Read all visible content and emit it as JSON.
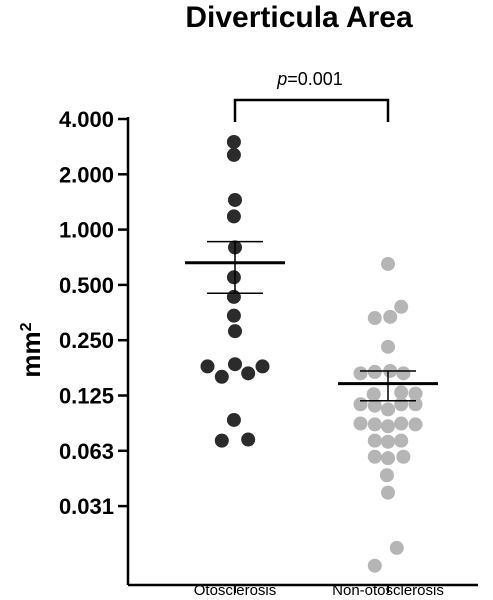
{
  "chart_data": {
    "type": "scatter",
    "title": "Diverticula Area",
    "ylabel_base": "mm",
    "ylabel_sup": "2",
    "yscale": "log2",
    "ylim": [
      0.0156,
      4.0
    ],
    "yticks": [
      {
        "value": 4.0,
        "label": "4.000"
      },
      {
        "value": 2.0,
        "label": "2.000"
      },
      {
        "value": 1.0,
        "label": "1.000"
      },
      {
        "value": 0.5,
        "label": "0.500"
      },
      {
        "value": 0.25,
        "label": "0.250"
      },
      {
        "value": 0.125,
        "label": "0.125"
      },
      {
        "value": 0.0625,
        "label": "0.063"
      },
      {
        "value": 0.03125,
        "label": "0.031"
      }
    ],
    "categories": [
      "Otosclerosis",
      "Non-otosclerosis"
    ],
    "annotation": {
      "p_label": "p",
      "p_value": "=0.001",
      "between": [
        0,
        1
      ]
    },
    "series": [
      {
        "category": "Otosclerosis",
        "color": "#2b2b2b",
        "mean": 0.66,
        "sem_low": 0.45,
        "sem_high": 0.86,
        "points": [
          {
            "y": 3.0,
            "dx": -0.01
          },
          {
            "y": 2.55,
            "dx": -0.01
          },
          {
            "y": 1.45,
            "dx": 0.0
          },
          {
            "y": 1.18,
            "dx": -0.01
          },
          {
            "y": 0.8,
            "dx": 0.0
          },
          {
            "y": 0.55,
            "dx": -0.01
          },
          {
            "y": 0.43,
            "dx": -0.01
          },
          {
            "y": 0.34,
            "dx": -0.01
          },
          {
            "y": 0.28,
            "dx": 0.0
          },
          {
            "y": 0.18,
            "dx": -0.25
          },
          {
            "y": 0.18,
            "dx": 0.25
          },
          {
            "y": 0.185,
            "dx": 0.0
          },
          {
            "y": 0.158,
            "dx": -0.12
          },
          {
            "y": 0.165,
            "dx": 0.12
          },
          {
            "y": 0.092,
            "dx": -0.01
          },
          {
            "y": 0.071,
            "dx": -0.12
          },
          {
            "y": 0.072,
            "dx": 0.12
          }
        ]
      },
      {
        "category": "Non-otosclerosis",
        "color": "#b5b5b5",
        "mean": 0.145,
        "sem_low": 0.117,
        "sem_high": 0.17,
        "points": [
          {
            "y": 0.65,
            "dx": 0.0
          },
          {
            "y": 0.38,
            "dx": 0.12
          },
          {
            "y": 0.33,
            "dx": -0.12
          },
          {
            "y": 0.335,
            "dx": 0.02
          },
          {
            "y": 0.23,
            "dx": 0.0
          },
          {
            "y": 0.165,
            "dx": -0.25
          },
          {
            "y": 0.168,
            "dx": -0.12
          },
          {
            "y": 0.17,
            "dx": 0.02
          },
          {
            "y": 0.165,
            "dx": 0.14
          },
          {
            "y": 0.13,
            "dx": 0.12
          },
          {
            "y": 0.127,
            "dx": -0.13
          },
          {
            "y": 0.128,
            "dx": 0.25
          },
          {
            "y": 0.112,
            "dx": -0.25
          },
          {
            "y": 0.11,
            "dx": -0.12
          },
          {
            "y": 0.105,
            "dx": 0.0
          },
          {
            "y": 0.112,
            "dx": 0.12
          },
          {
            "y": 0.112,
            "dx": 0.25
          },
          {
            "y": 0.088,
            "dx": -0.25
          },
          {
            "y": 0.087,
            "dx": -0.12
          },
          {
            "y": 0.085,
            "dx": 0.0
          },
          {
            "y": 0.088,
            "dx": 0.12
          },
          {
            "y": 0.087,
            "dx": 0.25
          },
          {
            "y": 0.071,
            "dx": -0.12
          },
          {
            "y": 0.07,
            "dx": 0.0
          },
          {
            "y": 0.071,
            "dx": 0.12
          },
          {
            "y": 0.058,
            "dx": -0.12
          },
          {
            "y": 0.057,
            "dx": 0.0
          },
          {
            "y": 0.058,
            "dx": 0.14
          },
          {
            "y": 0.046,
            "dx": -0.01
          },
          {
            "y": 0.037,
            "dx": 0.0
          },
          {
            "y": 0.0185,
            "dx": 0.08
          },
          {
            "y": 0.0148,
            "dx": -0.12
          }
        ]
      }
    ]
  }
}
